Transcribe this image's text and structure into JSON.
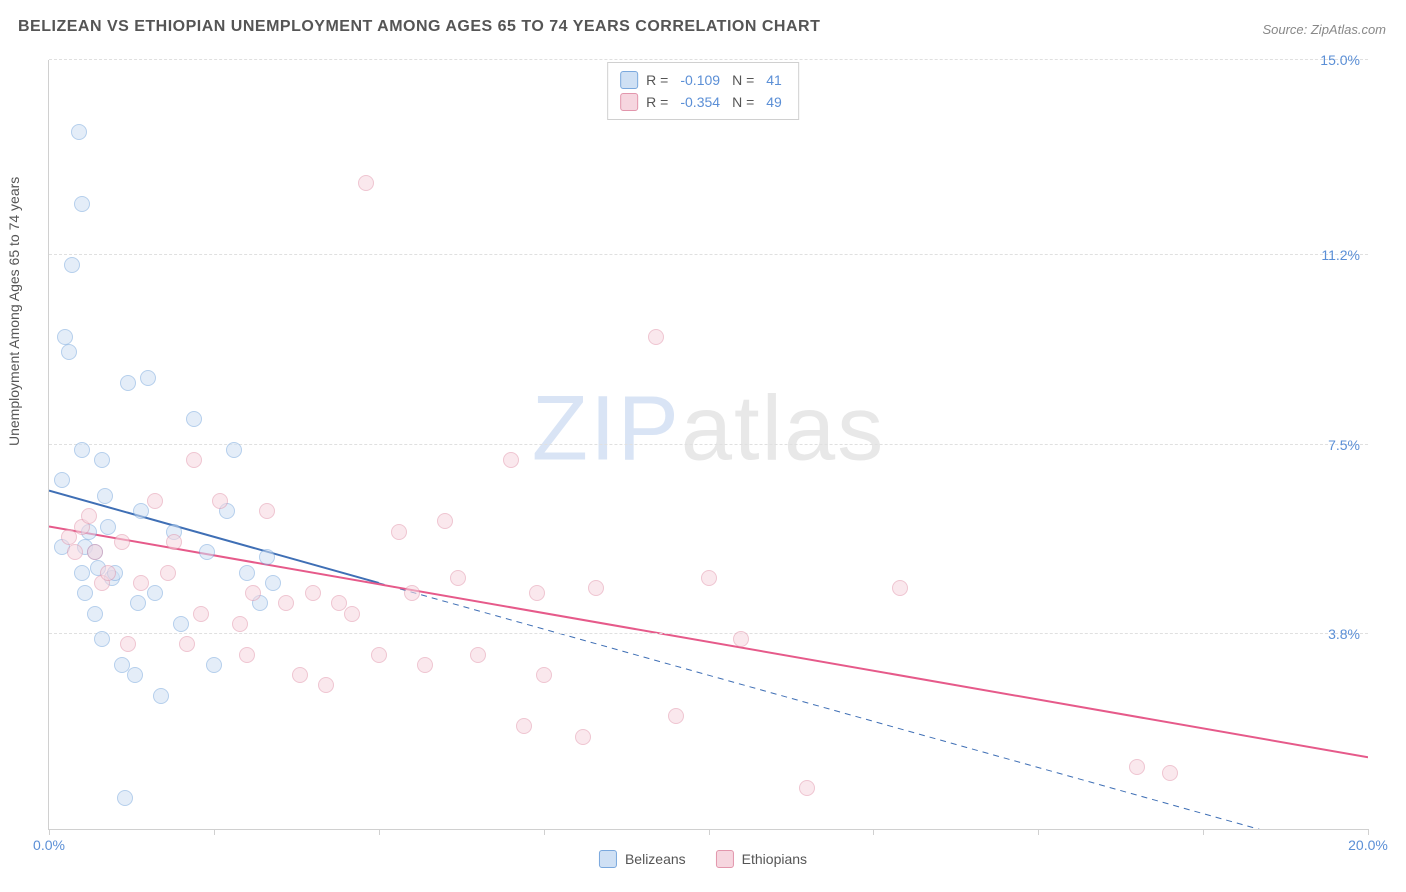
{
  "title": "BELIZEAN VS ETHIOPIAN UNEMPLOYMENT AMONG AGES 65 TO 74 YEARS CORRELATION CHART",
  "source": "Source: ZipAtlas.com",
  "watermark": {
    "part1": "ZIP",
    "part2": "atlas"
  },
  "y_axis_label": "Unemployment Among Ages 65 to 74 years",
  "chart": {
    "type": "scatter",
    "background_color": "#ffffff",
    "grid_color": "#e0e0e0",
    "axis_color": "#d0d0d0",
    "tick_label_color": "#5b8fd6",
    "title_color": "#555555",
    "title_fontsize": 16,
    "tick_fontsize": 14,
    "xlim": [
      0,
      20
    ],
    "ylim": [
      0,
      15
    ],
    "x_ticks": [
      {
        "v": 0.0,
        "label": "0.0%"
      },
      {
        "v": 2.5,
        "label": ""
      },
      {
        "v": 5.0,
        "label": ""
      },
      {
        "v": 7.5,
        "label": ""
      },
      {
        "v": 10.0,
        "label": ""
      },
      {
        "v": 12.5,
        "label": ""
      },
      {
        "v": 15.0,
        "label": ""
      },
      {
        "v": 17.5,
        "label": ""
      },
      {
        "v": 20.0,
        "label": "20.0%"
      }
    ],
    "y_ticks": [
      {
        "v": 3.8,
        "label": "3.8%"
      },
      {
        "v": 7.5,
        "label": "7.5%"
      },
      {
        "v": 11.2,
        "label": "11.2%"
      },
      {
        "v": 15.0,
        "label": "15.0%"
      }
    ],
    "marker_radius": 8,
    "marker_border_width": 1.5,
    "series": [
      {
        "name": "Belizeans",
        "fill": "#cfe0f4",
        "stroke": "#7aa8dd",
        "fill_opacity": 0.55,
        "R": "-0.109",
        "N": "41",
        "regression": {
          "color": "#3f6fb5",
          "width": 2,
          "solid_until_x": 5.0,
          "y_at_x0": 6.6,
          "y_at_xmax": -0.6
        },
        "points": [
          [
            0.2,
            6.8
          ],
          [
            0.2,
            5.5
          ],
          [
            0.25,
            9.6
          ],
          [
            0.3,
            9.3
          ],
          [
            0.35,
            11.0
          ],
          [
            0.45,
            13.6
          ],
          [
            0.5,
            12.2
          ],
          [
            0.5,
            7.4
          ],
          [
            0.5,
            5.0
          ],
          [
            0.55,
            5.5
          ],
          [
            0.55,
            4.6
          ],
          [
            0.6,
            5.8
          ],
          [
            0.7,
            4.2
          ],
          [
            0.7,
            5.4
          ],
          [
            0.75,
            5.1
          ],
          [
            0.8,
            3.7
          ],
          [
            0.8,
            7.2
          ],
          [
            0.85,
            6.5
          ],
          [
            0.9,
            5.9
          ],
          [
            0.95,
            4.9
          ],
          [
            1.0,
            5.0
          ],
          [
            1.1,
            3.2
          ],
          [
            1.15,
            0.6
          ],
          [
            1.2,
            8.7
          ],
          [
            1.3,
            3.0
          ],
          [
            1.35,
            4.4
          ],
          [
            1.4,
            6.2
          ],
          [
            1.5,
            8.8
          ],
          [
            1.6,
            4.6
          ],
          [
            1.7,
            2.6
          ],
          [
            1.9,
            5.8
          ],
          [
            2.0,
            4.0
          ],
          [
            2.2,
            8.0
          ],
          [
            2.4,
            5.4
          ],
          [
            2.5,
            3.2
          ],
          [
            2.7,
            6.2
          ],
          [
            2.8,
            7.4
          ],
          [
            3.0,
            5.0
          ],
          [
            3.2,
            4.4
          ],
          [
            3.3,
            5.3
          ],
          [
            3.4,
            4.8
          ]
        ]
      },
      {
        "name": "Ethiopians",
        "fill": "#f6d6df",
        "stroke": "#e296ac",
        "fill_opacity": 0.55,
        "R": "-0.354",
        "N": "49",
        "regression": {
          "color": "#e65a8a",
          "width": 2,
          "solid_until_x": 20.0,
          "y_at_x0": 5.9,
          "y_at_xmax": 1.4
        },
        "points": [
          [
            0.3,
            5.7
          ],
          [
            0.4,
            5.4
          ],
          [
            0.5,
            5.9
          ],
          [
            0.6,
            6.1
          ],
          [
            0.7,
            5.4
          ],
          [
            0.8,
            4.8
          ],
          [
            0.9,
            5.0
          ],
          [
            1.1,
            5.6
          ],
          [
            1.2,
            3.6
          ],
          [
            1.4,
            4.8
          ],
          [
            1.6,
            6.4
          ],
          [
            1.8,
            5.0
          ],
          [
            1.9,
            5.6
          ],
          [
            2.1,
            3.6
          ],
          [
            2.2,
            7.2
          ],
          [
            2.3,
            4.2
          ],
          [
            2.6,
            6.4
          ],
          [
            2.9,
            4.0
          ],
          [
            3.0,
            3.4
          ],
          [
            3.1,
            4.6
          ],
          [
            3.3,
            6.2
          ],
          [
            3.6,
            4.4
          ],
          [
            3.8,
            3.0
          ],
          [
            4.0,
            4.6
          ],
          [
            4.2,
            2.8
          ],
          [
            4.4,
            4.4
          ],
          [
            4.6,
            4.2
          ],
          [
            4.8,
            12.6
          ],
          [
            5.0,
            3.4
          ],
          [
            5.3,
            5.8
          ],
          [
            5.5,
            4.6
          ],
          [
            5.7,
            3.2
          ],
          [
            6.0,
            6.0
          ],
          [
            6.2,
            4.9
          ],
          [
            6.5,
            3.4
          ],
          [
            7.0,
            7.2
          ],
          [
            7.2,
            2.0
          ],
          [
            7.4,
            4.6
          ],
          [
            7.5,
            3.0
          ],
          [
            8.1,
            1.8
          ],
          [
            8.3,
            4.7
          ],
          [
            9.2,
            9.6
          ],
          [
            9.5,
            2.2
          ],
          [
            10.0,
            4.9
          ],
          [
            10.5,
            3.7
          ],
          [
            11.5,
            0.8
          ],
          [
            12.9,
            4.7
          ],
          [
            16.5,
            1.2
          ],
          [
            17.0,
            1.1
          ]
        ]
      }
    ]
  },
  "legend_top": {
    "r_label": "R =",
    "n_label": "N ="
  },
  "legend_bottom": {
    "label1": "Belizeans",
    "label2": "Ethiopians"
  }
}
